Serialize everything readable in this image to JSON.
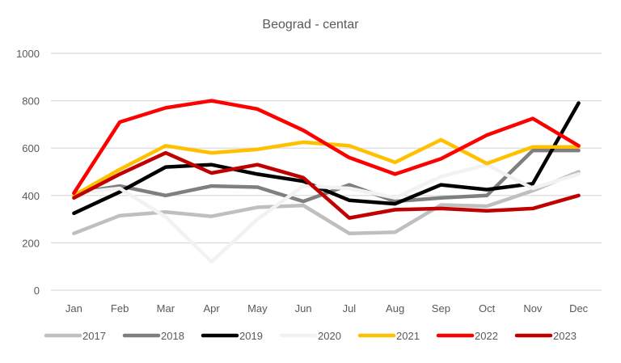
{
  "chart_data": {
    "type": "line",
    "title": "Beograd - centar",
    "xlabel": "",
    "ylabel": "",
    "ylim": [
      0,
      1000
    ],
    "yticks": [
      0,
      200,
      400,
      600,
      800,
      1000
    ],
    "ytick_labels": [
      "0",
      "200",
      "400",
      "600",
      "800",
      "1000"
    ],
    "grid": true,
    "legend_position": "bottom",
    "categories": [
      "Jan",
      "Feb",
      "Mar",
      "Apr",
      "May",
      "Jun",
      "Jul",
      "Aug",
      "Sep",
      "Oct",
      "Nov",
      "Dec"
    ],
    "series": [
      {
        "name": "2017",
        "color": "#BFBFBF",
        "values": [
          240,
          315,
          330,
          312,
          350,
          358,
          240,
          245,
          360,
          355,
          420,
          500
        ]
      },
      {
        "name": "2018",
        "color": "#7F7F7F",
        "values": [
          410,
          440,
          400,
          440,
          435,
          375,
          445,
          375,
          390,
          400,
          590,
          590
        ]
      },
      {
        "name": "2019",
        "color": "#000000",
        "values": [
          325,
          415,
          520,
          530,
          490,
          460,
          380,
          365,
          445,
          425,
          450,
          790
        ]
      },
      {
        "name": "2020",
        "color": "#F2F2F2",
        "values": [
          410,
          430,
          310,
          120,
          300,
          440,
          430,
          390,
          480,
          530,
          430,
          490
        ]
      },
      {
        "name": "2021",
        "color": "#FFC000",
        "values": [
          400,
          510,
          610,
          580,
          595,
          625,
          610,
          540,
          635,
          535,
          605,
          605
        ]
      },
      {
        "name": "2022",
        "color": "#FF0000",
        "values": [
          410,
          710,
          770,
          800,
          765,
          675,
          560,
          490,
          555,
          655,
          725,
          610
        ]
      },
      {
        "name": "2023",
        "color": "#C00000",
        "values": [
          390,
          490,
          580,
          495,
          530,
          475,
          305,
          340,
          345,
          335,
          345,
          400
        ]
      }
    ]
  }
}
